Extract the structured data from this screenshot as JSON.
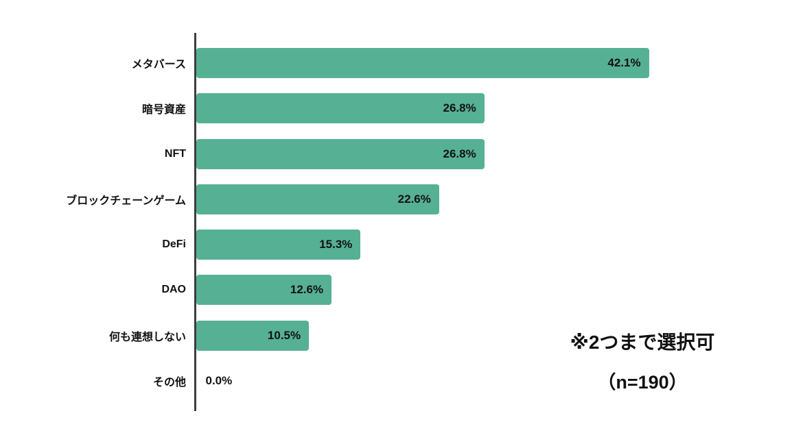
{
  "chart_data": {
    "type": "bar",
    "orientation": "horizontal",
    "title": "",
    "xlabel": "",
    "ylabel": "",
    "categories": [
      "メタバース",
      "暗号資産",
      "NFT",
      "ブロックチェーンゲーム",
      "DeFi",
      "DAO",
      "何も連想しない",
      "その他"
    ],
    "values": [
      42.1,
      26.8,
      26.8,
      22.6,
      15.3,
      12.6,
      10.5,
      0.0
    ],
    "value_labels": [
      "42.1%",
      "26.8%",
      "26.8%",
      "22.6%",
      "15.3%",
      "12.6%",
      "10.5%",
      "0.0%"
    ],
    "xlim": [
      0,
      45
    ],
    "grid": false,
    "legend": "none",
    "bar_color": "#56B094"
  },
  "annotations": {
    "note_line1": "※2つまで選択可",
    "note_line2": "（n=190）"
  },
  "colors": {
    "bar": "#56B094",
    "axis": "#3c3c3c",
    "text": "#111111",
    "background": "#FFFFFF"
  }
}
